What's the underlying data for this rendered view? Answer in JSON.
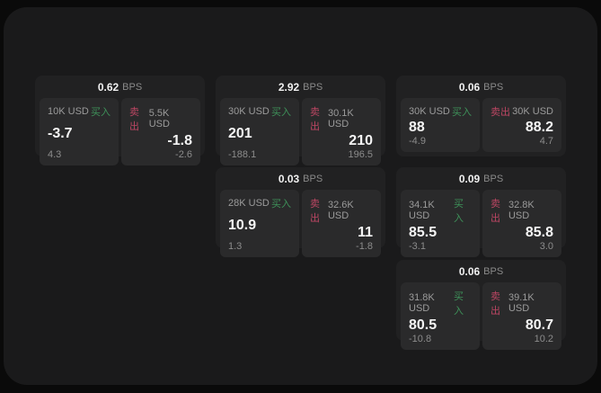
{
  "labels": {
    "buy": "买入",
    "sell": "卖出",
    "bps_unit": "BPS"
  },
  "colors": {
    "page_bg": "#0a0a0a",
    "panel_bg": "#1a1a1b",
    "card_bg": "#212122",
    "tile_bg": "#2a2a2b",
    "text_primary": "#f5f5f5",
    "text_muted": "#9b9b9b",
    "buy_green": "#3e9159",
    "sell_red": "#bc4663"
  },
  "cards": [
    {
      "bps": "0.62",
      "buy": {
        "amount": "10K USD",
        "value": "-3.7",
        "delta": "4.3"
      },
      "sell": {
        "amount": "5.5K USD",
        "value": "-1.8",
        "delta": "-2.6"
      }
    },
    {
      "bps": "2.92",
      "buy": {
        "amount": "30K USD",
        "value": "201",
        "delta": "-188.1"
      },
      "sell": {
        "amount": "30.1K USD",
        "value": "210",
        "delta": "196.5"
      }
    },
    {
      "bps": "0.06",
      "buy": {
        "amount": "30K USD",
        "value": "88",
        "delta": "-4.9"
      },
      "sell": {
        "amount": "30K USD",
        "value": "88.2",
        "delta": "4.7"
      }
    },
    {
      "bps": "0.03",
      "buy": {
        "amount": "28K USD",
        "value": "10.9",
        "delta": "1.3"
      },
      "sell": {
        "amount": "32.6K USD",
        "value": "11",
        "delta": "-1.8"
      }
    },
    {
      "bps": "0.09",
      "buy": {
        "amount": "34.1K USD",
        "value": "85.5",
        "delta": "-3.1"
      },
      "sell": {
        "amount": "32.8K USD",
        "value": "85.8",
        "delta": "3.0"
      }
    },
    {
      "bps": "0.06",
      "buy": {
        "amount": "31.8K USD",
        "value": "80.5",
        "delta": "-10.8"
      },
      "sell": {
        "amount": "39.1K USD",
        "value": "80.7",
        "delta": "10.2"
      }
    }
  ]
}
